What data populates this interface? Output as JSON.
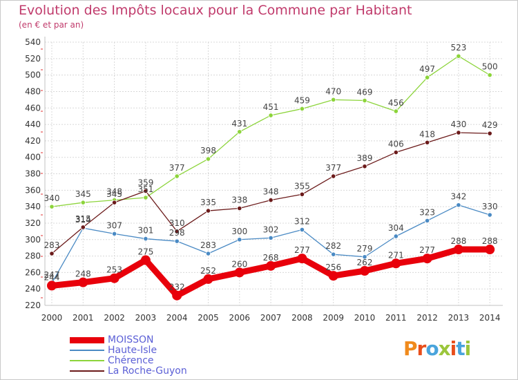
{
  "header": {
    "title": "Evolution des Impôts locaux pour la Commune par Habitant",
    "subtitle": "(en € et par an)"
  },
  "logo": {
    "text": "Proxiti",
    "colors": [
      "#f08a1c",
      "#e84e1b",
      "#49a4dc",
      "#9bc63b",
      "#e84e1b",
      "#49a4dc",
      "#9bc63b"
    ]
  },
  "chart_data": {
    "type": "line",
    "x": [
      "2000",
      "2001",
      "2002",
      "2003",
      "2004",
      "2005",
      "2006",
      "2007",
      "2008",
      "2009",
      "2010",
      "2011",
      "2012",
      "2013",
      "2014"
    ],
    "ylim": [
      220,
      540
    ],
    "yticks": [
      220,
      240,
      260,
      280,
      300,
      320,
      340,
      360,
      380,
      400,
      420,
      440,
      460,
      480,
      500,
      520,
      540
    ],
    "grid": true,
    "legend_position": "bottom-left",
    "series": [
      {
        "name": "MOISSON",
        "color": "#e8000b",
        "values": [
          244,
          248,
          253,
          275,
          232,
          252,
          260,
          268,
          277,
          256,
          262,
          271,
          277,
          288,
          288
        ]
      },
      {
        "name": "Haute-Isle",
        "color": "#4a8ac4",
        "values": [
          247,
          314,
          307,
          301,
          298,
          283,
          300,
          302,
          312,
          282,
          279,
          304,
          323,
          342,
          330
        ]
      },
      {
        "name": "Chérence",
        "color": "#8cd43a",
        "values": [
          340,
          345,
          348,
          351,
          377,
          398,
          431,
          451,
          459,
          470,
          469,
          456,
          497,
          523,
          500
        ]
      },
      {
        "name": "La Roche-Guyon",
        "color": "#6b1a1a",
        "values": [
          283,
          315,
          345,
          359,
          310,
          335,
          338,
          348,
          355,
          377,
          389,
          406,
          418,
          430,
          429
        ]
      }
    ]
  }
}
